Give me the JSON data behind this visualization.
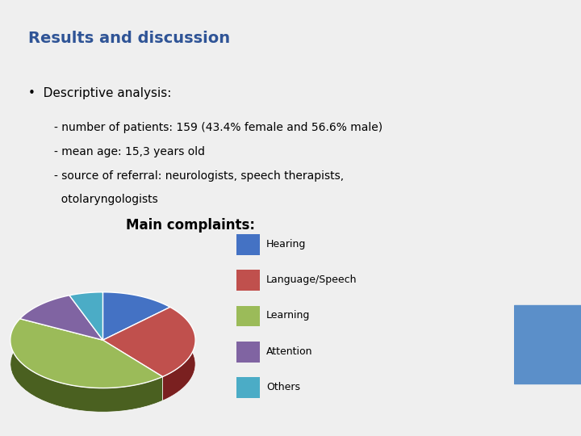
{
  "title": "Results and discussion",
  "title_color": "#2F5496",
  "title_fontsize": 14,
  "bullet_text": "Descriptive analysis:",
  "bullet_lines": [
    "- number of patients: 159 (43.4% female and 56.6% male)",
    "- mean age: 15,3 years old",
    "- source of referral: neurologists, speech therapists,",
    "  otolaryngologists"
  ],
  "chart_title": "Main complaints:",
  "pie_labels": [
    "Hearing",
    "Language/Speech",
    "Learning",
    "Attention",
    "Others"
  ],
  "pie_values": [
    11,
    22,
    37,
    10,
    5
  ],
  "pie_colors": [
    "#4472C4",
    "#C0504D",
    "#9BBB59",
    "#8064A2",
    "#4BACC6"
  ],
  "pie_dark_colors": [
    "#2A4A8A",
    "#7A2020",
    "#4A6020",
    "#4A3060",
    "#1A7080"
  ],
  "background_color": "#EFEFEF",
  "sidebar_color": "#1F4E79",
  "sidebar_mid_color": "#5B8FC9",
  "sidebar_bot_color": "#1F4E79"
}
